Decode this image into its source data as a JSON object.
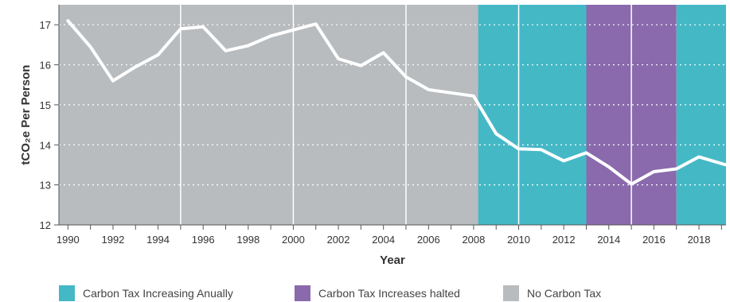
{
  "chart_data": {
    "type": "line",
    "title": "",
    "xlabel": "Year",
    "ylabel": "tCO₂e Per Person",
    "xlim": [
      1989.6,
      2019.2
    ],
    "ylim": [
      12,
      17.5
    ],
    "x_ticks": [
      1990,
      1992,
      1994,
      1996,
      1998,
      2000,
      2002,
      2004,
      2006,
      2008,
      2010,
      2012,
      2014,
      2016,
      2018
    ],
    "x_tick_labels": [
      "1990",
      "1992",
      "1994",
      "1996",
      "1998",
      "2000",
      "2002",
      "2004",
      "2006",
      "2008",
      "2010",
      "2012",
      "2014",
      "2016",
      "2018"
    ],
    "y_ticks": [
      12,
      13,
      14,
      15,
      16,
      17
    ],
    "y_tick_labels": [
      "12",
      "13",
      "14",
      "15",
      "16",
      "17"
    ],
    "grid": "horizontal dotted",
    "series": [
      {
        "color": "#ffffff",
        "x": [
          1990,
          1991,
          1992,
          1993,
          1994,
          1995,
          1996,
          1997,
          1998,
          1999,
          2000,
          2001,
          2002,
          2003,
          2004,
          2005,
          2006,
          2007,
          2008,
          2009,
          2010,
          2011,
          2012,
          2013,
          2014,
          2015,
          2016,
          2017,
          2018,
          2019.2
        ],
        "y": [
          17.1,
          16.45,
          15.6,
          15.95,
          16.25,
          16.9,
          16.95,
          16.35,
          16.48,
          16.72,
          16.87,
          17.02,
          16.15,
          15.98,
          16.3,
          15.7,
          15.38,
          15.3,
          15.22,
          14.28,
          13.9,
          13.88,
          13.6,
          13.8,
          13.45,
          13.02,
          13.33,
          13.4,
          13.7,
          13.5
        ]
      }
    ],
    "periods": [
      {
        "category": "no_tax",
        "start": 1989.6,
        "end": 2008.2
      },
      {
        "category": "increasing",
        "start": 2008.2,
        "end": 2013
      },
      {
        "category": "halted",
        "start": 2013,
        "end": 2017
      },
      {
        "category": "increasing",
        "start": 2017,
        "end": 2019.2
      }
    ],
    "vertical_lines": [
      1995,
      2000,
      2005,
      2010,
      2015
    ],
    "legend": {
      "placement": "bottom",
      "items": [
        {
          "key": "increasing",
          "label": "Carbon Tax Increasing Anually",
          "color": "#45b8c6"
        },
        {
          "key": "halted",
          "label": "Carbon Tax Increases halted",
          "color": "#8a6aac"
        },
        {
          "key": "no_tax",
          "label": "No Carbon Tax",
          "color": "#b8bcbf"
        }
      ]
    }
  }
}
